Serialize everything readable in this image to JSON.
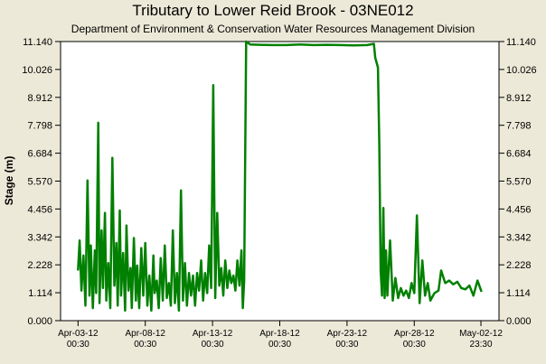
{
  "chart_data": {
    "type": "line",
    "title": "Tributary to Lower Reid Brook - 03NE012",
    "subtitle": "Department of Environment & Conservation Water Resources Management Division",
    "ylabel": "Stage (m)",
    "xlabel": "",
    "ylim": [
      0,
      11.14
    ],
    "yticks": [
      "0.000",
      "1.114",
      "2.228",
      "3.342",
      "4.456",
      "5.570",
      "6.684",
      "7.798",
      "8.912",
      "10.026",
      "11.140"
    ],
    "xticks": [
      {
        "value": 0,
        "line1": "Apr-03-12",
        "line2": "00:30"
      },
      {
        "value": 5,
        "line1": "Apr-08-12",
        "line2": "00:30"
      },
      {
        "value": 10,
        "line1": "Apr-13-12",
        "line2": "00:30"
      },
      {
        "value": 15,
        "line1": "Apr-18-12",
        "line2": "00:30"
      },
      {
        "value": 20,
        "line1": "Apr-23-12",
        "line2": "00:30"
      },
      {
        "value": 25,
        "line1": "Apr-28-12",
        "line2": "00:30"
      },
      {
        "value": 29.958,
        "line1": "May-02-12",
        "line2": "23:30"
      }
    ],
    "xlim": [
      -1.3,
      31.3
    ],
    "grid": false,
    "series": [
      {
        "color": "#008000",
        "x": [
          0,
          0.12,
          0.25,
          0.4,
          0.55,
          0.7,
          0.85,
          0.95,
          1.1,
          1.25,
          1.35,
          1.5,
          1.6,
          1.75,
          1.85,
          2.0,
          2.1,
          2.25,
          2.4,
          2.55,
          2.7,
          2.85,
          2.95,
          3.1,
          3.2,
          3.35,
          3.5,
          3.6,
          3.75,
          3.9,
          4.0,
          4.15,
          4.3,
          4.4,
          4.55,
          4.7,
          4.85,
          5.0,
          5.15,
          5.3,
          5.45,
          5.6,
          5.7,
          5.85,
          6.0,
          6.15,
          6.3,
          6.45,
          6.6,
          6.75,
          6.9,
          7.05,
          7.2,
          7.35,
          7.5,
          7.65,
          7.8,
          7.95,
          8.1,
          8.25,
          8.4,
          8.55,
          8.7,
          8.85,
          9.0,
          9.15,
          9.3,
          9.45,
          9.6,
          9.75,
          9.9,
          10.05,
          10.2,
          10.35,
          10.5,
          10.65,
          10.8,
          10.95,
          11.1,
          11.25,
          11.4,
          11.55,
          11.7,
          11.85,
          12.0,
          12.15,
          12.25,
          12.35,
          12.5,
          12.8,
          13.5,
          14.5,
          15.5,
          16.5,
          17.5,
          18.5,
          19.5,
          20.5,
          21.5,
          22.0,
          22.1,
          22.2,
          22.3,
          22.4,
          22.5,
          22.6,
          22.7,
          22.8,
          22.9,
          23.0,
          23.2,
          23.4,
          23.6,
          23.8,
          24.0,
          24.2,
          24.4,
          24.6,
          24.8,
          25.0,
          25.2,
          25.4,
          25.6,
          25.8,
          26.0,
          26.2,
          26.3,
          26.5,
          26.8,
          27.0,
          27.3,
          27.6,
          27.9,
          28.2,
          28.5,
          28.8,
          29.1,
          29.4,
          29.7,
          30.0
        ],
        "y": [
          2.0,
          3.2,
          1.2,
          2.6,
          0.6,
          5.6,
          1.0,
          3.0,
          0.5,
          2.8,
          1.1,
          7.9,
          0.7,
          3.6,
          1.3,
          4.3,
          0.8,
          2.3,
          0.5,
          6.5,
          1.4,
          3.1,
          0.6,
          4.4,
          1.0,
          2.7,
          0.4,
          3.8,
          1.2,
          2.1,
          0.5,
          3.3,
          0.8,
          2.2,
          0.5,
          2.9,
          1.0,
          3.1,
          0.6,
          1.8,
          0.4,
          2.6,
          1.1,
          1.6,
          0.5,
          2.5,
          0.8,
          3.0,
          0.9,
          1.5,
          0.6,
          3.6,
          0.7,
          1.9,
          0.4,
          5.2,
          0.8,
          2.3,
          0.6,
          1.9,
          1.0,
          1.8,
          0.6,
          1.9,
          1.2,
          2.4,
          0.8,
          1.9,
          1.1,
          3.0,
          1.3,
          9.4,
          0.9,
          4.3,
          1.4,
          2.1,
          1.0,
          2.4,
          1.3,
          2.0,
          1.5,
          1.8,
          1.2,
          2.4,
          1.4,
          2.8,
          0.5,
          1.6,
          11.14,
          11.02,
          11.01,
          11.0,
          11.0,
          11.02,
          11.0,
          11.01,
          11.0,
          10.99,
          11.0,
          11.05,
          10.5,
          10.3,
          10.1,
          7.0,
          2.0,
          1.0,
          4.5,
          0.9,
          2.8,
          1.0,
          3.2,
          0.8,
          1.7,
          0.9,
          1.3,
          1.0,
          1.2,
          0.9,
          1.5,
          1.1,
          4.2,
          0.7,
          2.4,
          1.0,
          1.5,
          0.8,
          0.9,
          1.1,
          1.2,
          2.0,
          1.5,
          1.6,
          1.45,
          1.55,
          1.3,
          1.25,
          1.4,
          1.0,
          1.6,
          1.15
        ]
      }
    ]
  }
}
